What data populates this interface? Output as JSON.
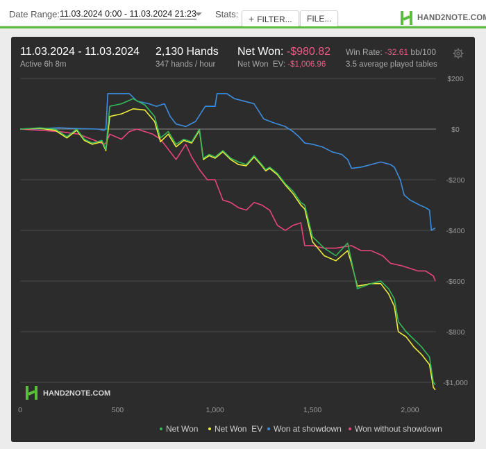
{
  "toolbar": {
    "date_range_label": "Date Range:",
    "date_range_value": "11.03.2024 0:00 - 11.03.2024 21:23",
    "stats_label": "Stats:",
    "filter_label": "FILTER...",
    "file_label": "FILE...",
    "brand_text": "HAND2NOTE.COM"
  },
  "summary": {
    "date_span": "11.03.2024 - 11.03.2024",
    "active_time": "Active 6h 8m",
    "hands": "2,130 Hands",
    "hands_rate": "347 hands / hour",
    "net_won_label": "Net Won:",
    "net_won_value": "-$980.82",
    "net_won_ev_label": "Net Won  EV:",
    "net_won_ev_value": "-$1,006.96",
    "win_rate_label": "Win Rate:",
    "win_rate_value": "-32.61",
    "win_rate_unit": "bb/100",
    "avg_tables": "3.5 average played tables"
  },
  "watermark": "HAND2NOTE.COM",
  "colors": {
    "net_won": "#35b85a",
    "net_won_ev": "#f0ec3a",
    "won_at_showdown": "#3d8ee0",
    "won_without_showdown": "#e8457a",
    "brand_green": "#5bbd3c"
  },
  "icons": [
    "plus-icon",
    "hand2note-logo",
    "gear-icon"
  ],
  "chart_data": {
    "type": "line",
    "title": "",
    "xlabel": "",
    "ylabel": "",
    "xlim": [
      0,
      2130
    ],
    "ylim": [
      -1050,
      200
    ],
    "x_ticks": [
      0,
      500,
      1000,
      1500,
      2000
    ],
    "x_tick_labels": [
      "0",
      "500",
      "1,000",
      "1,500",
      "2,000"
    ],
    "y_ticks": [
      200,
      0,
      -200,
      -400,
      -600,
      -800,
      -1000
    ],
    "y_tick_labels": [
      "$200",
      "$0",
      "-$200",
      "-$400",
      "-$600",
      "-$800",
      "-$1,000"
    ],
    "grid": true,
    "legend_position": "bottom",
    "series": [
      {
        "name": "Net Won",
        "x": [
          0,
          100,
          180,
          240,
          290,
          330,
          370,
          420,
          440,
          460,
          520,
          580,
          640,
          690,
          720,
          760,
          800,
          840,
          880,
          920,
          940,
          970,
          1000,
          1040,
          1080,
          1120,
          1160,
          1200,
          1240,
          1260,
          1280,
          1320,
          1360,
          1400,
          1440,
          1460,
          1500,
          1560,
          1620,
          1680,
          1700,
          1730,
          1800,
          1850,
          1890,
          1920,
          1940,
          1980,
          2020,
          2060,
          2100,
          2120,
          2130
        ],
        "y": [
          0,
          5,
          0,
          -30,
          0,
          -40,
          -55,
          -45,
          -80,
          90,
          100,
          120,
          95,
          50,
          -35,
          -10,
          -60,
          -40,
          -50,
          0,
          -115,
          -100,
          -110,
          -85,
          -115,
          -130,
          -140,
          -105,
          -140,
          -160,
          -150,
          -175,
          -215,
          -245,
          -290,
          -300,
          -425,
          -470,
          -500,
          -450,
          -520,
          -630,
          -610,
          -600,
          -630,
          -670,
          -760,
          -800,
          -830,
          -860,
          -900,
          -1000,
          -1010
        ]
      },
      {
        "name": "Net Won  EV",
        "x": [
          0,
          100,
          180,
          240,
          290,
          330,
          370,
          420,
          440,
          460,
          520,
          580,
          640,
          690,
          720,
          760,
          800,
          840,
          880,
          920,
          940,
          970,
          1000,
          1040,
          1080,
          1120,
          1160,
          1200,
          1240,
          1260,
          1280,
          1320,
          1360,
          1400,
          1440,
          1460,
          1500,
          1560,
          1620,
          1680,
          1700,
          1730,
          1800,
          1850,
          1890,
          1920,
          1940,
          1980,
          2020,
          2060,
          2100,
          2120,
          2130
        ],
        "y": [
          0,
          3,
          -5,
          -35,
          -5,
          -45,
          -60,
          -50,
          -85,
          50,
          60,
          80,
          75,
          30,
          -50,
          -20,
          -70,
          -45,
          -55,
          -5,
          -120,
          -105,
          -115,
          -90,
          -120,
          -140,
          -145,
          -110,
          -145,
          -165,
          -155,
          -180,
          -220,
          -255,
          -300,
          -315,
          -445,
          -500,
          -520,
          -480,
          -530,
          -620,
          -610,
          -610,
          -650,
          -700,
          -800,
          -820,
          -860,
          -890,
          -930,
          -1020,
          -1030
        ]
      },
      {
        "name": "Won at showdown",
        "x": [
          0,
          100,
          200,
          300,
          400,
          430,
          440,
          450,
          520,
          560,
          600,
          660,
          700,
          740,
          770,
          800,
          850,
          900,
          950,
          1000,
          1010,
          1060,
          1100,
          1150,
          1200,
          1250,
          1300,
          1360,
          1400,
          1430,
          1460,
          1500,
          1550,
          1600,
          1650,
          1680,
          1700,
          1750,
          1800,
          1850,
          1900,
          1920,
          1950,
          1970,
          2000,
          2050,
          2080,
          2100,
          2110,
          2130
        ],
        "y": [
          0,
          2,
          5,
          2,
          0,
          -5,
          0,
          140,
          140,
          140,
          110,
          100,
          90,
          100,
          50,
          20,
          10,
          30,
          90,
          90,
          140,
          140,
          120,
          110,
          100,
          40,
          25,
          10,
          -10,
          -30,
          -55,
          -60,
          -70,
          -90,
          -100,
          -120,
          -155,
          -150,
          -140,
          -130,
          -140,
          -150,
          -200,
          -260,
          -280,
          -300,
          -310,
          -320,
          -400,
          -390
        ]
      },
      {
        "name": "Won without showdown",
        "x": [
          0,
          100,
          200,
          300,
          400,
          430,
          440,
          460,
          520,
          560,
          600,
          640,
          680,
          720,
          760,
          800,
          850,
          880,
          920,
          960,
          1000,
          1040,
          1080,
          1120,
          1160,
          1200,
          1240,
          1280,
          1320,
          1360,
          1400,
          1440,
          1460,
          1500,
          1560,
          1620,
          1700,
          1750,
          1800,
          1860,
          1900,
          1960,
          2000,
          2040,
          2080,
          2100,
          2120,
          2130
        ],
        "y": [
          0,
          -5,
          -10,
          -20,
          -50,
          -60,
          -55,
          -20,
          -40,
          -10,
          0,
          -10,
          -20,
          -40,
          -80,
          -120,
          -60,
          -110,
          -160,
          -200,
          -200,
          -280,
          -290,
          -310,
          -320,
          -290,
          -300,
          -320,
          -380,
          -400,
          -380,
          -370,
          -460,
          -460,
          -470,
          -470,
          -460,
          -480,
          -480,
          -500,
          -530,
          -540,
          -550,
          -560,
          -560,
          -570,
          -580,
          -600
        ]
      }
    ]
  },
  "legend": {
    "net_won": "Net Won",
    "net_won_ev": "Net Won  EV",
    "won_at_showdown": "Won at showdown",
    "won_without_showdown": "Won without showdown"
  }
}
